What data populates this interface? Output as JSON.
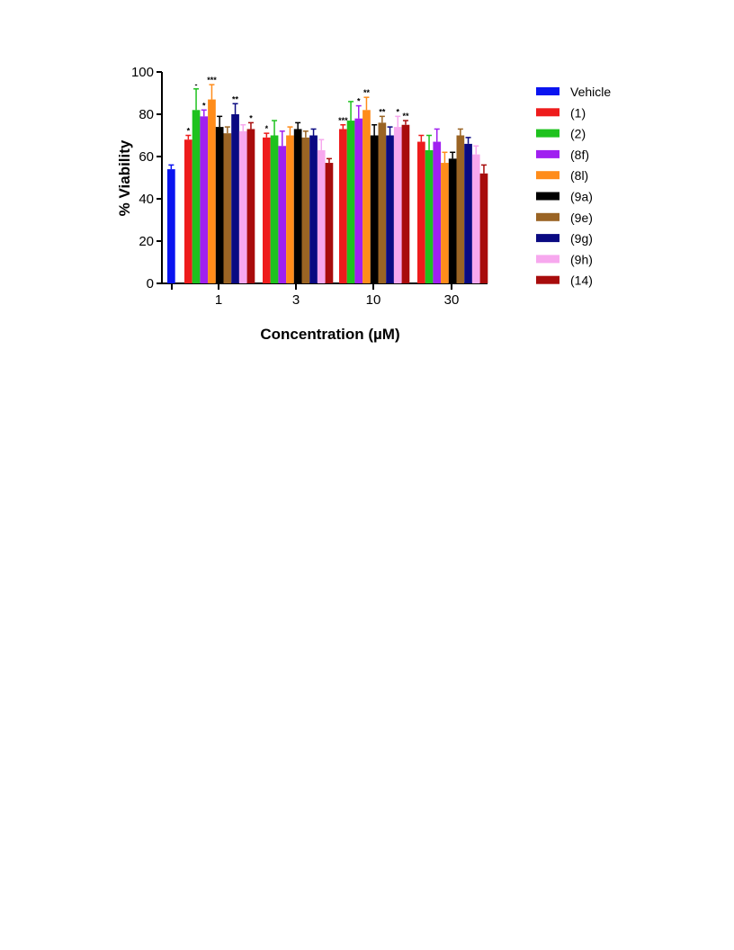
{
  "chart_data": {
    "type": "bar",
    "xlabel": "Concentration (µM)",
    "ylabel": "% Viability",
    "ylim": [
      0,
      100
    ],
    "yticks": [
      "0",
      "20",
      "40",
      "60",
      "80",
      "100"
    ],
    "categories": [
      "1",
      "3",
      "10",
      "30"
    ],
    "vehicle": {
      "name": "Vehicle",
      "value": 54,
      "error": 2,
      "color": "#0a14f0"
    },
    "series": [
      {
        "name": "(1)",
        "color": "#ee1c1c",
        "values": [
          68,
          69,
          73,
          67
        ],
        "errors": [
          2,
          2,
          2,
          3
        ],
        "sig": [
          "*",
          "*",
          "***",
          ""
        ]
      },
      {
        "name": "(2)",
        "color": "#1ec21e",
        "values": [
          82,
          70,
          77,
          63
        ],
        "errors": [
          10,
          7,
          9,
          7
        ],
        "sig": [
          "-",
          "",
          "",
          ""
        ]
      },
      {
        "name": "(8f)",
        "color": "#a020f0",
        "values": [
          79,
          65,
          78,
          67
        ],
        "errors": [
          3,
          7,
          6,
          6
        ],
        "sig": [
          "*",
          "",
          "*",
          ""
        ]
      },
      {
        "name": "(8l)",
        "color": "#ff8c1a",
        "values": [
          87,
          70,
          82,
          57
        ],
        "errors": [
          7,
          4,
          6,
          5
        ],
        "sig": [
          "***",
          "",
          "**",
          ""
        ]
      },
      {
        "name": "(9a)",
        "color": "#000000",
        "values": [
          74,
          73,
          70,
          59
        ],
        "errors": [
          5,
          3,
          5,
          3
        ],
        "sig": [
          "",
          "",
          "",
          ""
        ]
      },
      {
        "name": "(9e)",
        "color": "#9a6424",
        "values": [
          71,
          69,
          76,
          70
        ],
        "errors": [
          3,
          3,
          3,
          3
        ],
        "sig": [
          "",
          "",
          "**",
          ""
        ]
      },
      {
        "name": "(9g)",
        "color": "#0a0a82",
        "values": [
          80,
          70,
          70,
          66
        ],
        "errors": [
          5,
          3,
          4,
          3
        ],
        "sig": [
          "**",
          "",
          "",
          ""
        ]
      },
      {
        "name": "(9h)",
        "color": "#f7a8ee",
        "values": [
          72,
          63,
          74,
          61
        ],
        "errors": [
          3,
          5,
          5,
          4
        ],
        "sig": [
          "",
          "",
          "*",
          ""
        ]
      },
      {
        "name": "(14)",
        "color": "#a80c0c",
        "values": [
          73,
          57,
          75,
          52
        ],
        "errors": [
          3,
          2,
          2,
          4
        ],
        "sig": [
          "*",
          "",
          "**",
          ""
        ]
      }
    ],
    "legend_position": "right",
    "grid": false
  }
}
